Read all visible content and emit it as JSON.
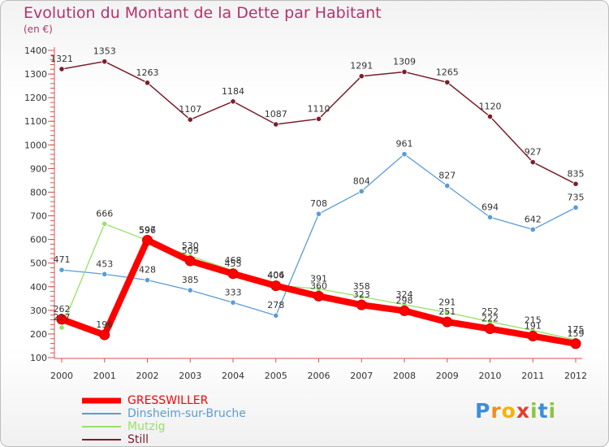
{
  "title": "Evolution du Montant de la Dette par Habitant",
  "subtitle": "(en €)",
  "logo": {
    "letters": [
      "P",
      "r",
      "o",
      "x",
      "i",
      "t",
      "i"
    ],
    "colors": [
      "#3b8fd8",
      "#f28c1c",
      "#f5b400",
      "#e63c2e",
      "#8cc63e",
      "#3b8fd8",
      "#8cc63e"
    ]
  },
  "chart_data": {
    "type": "line",
    "title": "Evolution du Montant de la Dette par Habitant",
    "ylabel": "(en €)",
    "xlabel": "",
    "x": [
      "2000",
      "2001",
      "2002",
      "2003",
      "2004",
      "2005",
      "2006",
      "2007",
      "2008",
      "2009",
      "2010",
      "2011",
      "2012"
    ],
    "ylim": [
      100,
      1400
    ],
    "yticks": [
      100,
      200,
      300,
      400,
      500,
      600,
      700,
      800,
      900,
      1000,
      1100,
      1200,
      1300,
      1400
    ],
    "grid": false,
    "legend_position": "bottom-left",
    "series": [
      {
        "name": "GRESSWILLER",
        "color": "#ff0000",
        "values": [
          262,
          196,
          597,
          509,
          455,
          404,
          360,
          323,
          298,
          251,
          222,
          191,
          159
        ],
        "labels": [
          "262",
          "196",
          "597",
          "509",
          "455",
          "404",
          "360",
          "323",
          "298",
          "251",
          "222",
          "191",
          "159"
        ]
      },
      {
        "name": "Dinsheim-sur-Bruche",
        "color": "#5b9bd5",
        "values": [
          471,
          453,
          428,
          385,
          333,
          278,
          708,
          804,
          961,
          827,
          694,
          642,
          735
        ],
        "labels": [
          "471",
          "453",
          "428",
          "385",
          "333",
          "278",
          "708",
          "804",
          "961",
          "827",
          "694",
          "642",
          "735"
        ]
      },
      {
        "name": "Mutzig",
        "color": "#99e066",
        "values": [
          227,
          666,
          596,
          530,
          468,
          406,
          391,
          358,
          324,
          291,
          252,
          215,
          175
        ],
        "labels": [
          "227",
          "666",
          "596",
          "530",
          "468",
          "406",
          "391",
          "358",
          "324",
          "291",
          "252",
          "215",
          "175"
        ]
      },
      {
        "name": "Still",
        "color": "#7a1f2b",
        "values": [
          1321,
          1353,
          1263,
          1107,
          1184,
          1087,
          1110,
          1291,
          1309,
          1265,
          1120,
          927,
          835
        ],
        "labels": [
          "1321",
          "1353",
          "1263",
          "1107",
          "1184",
          "1087",
          "1110",
          "1291",
          "1309",
          "1265",
          "1120",
          "927",
          "835"
        ]
      }
    ]
  }
}
